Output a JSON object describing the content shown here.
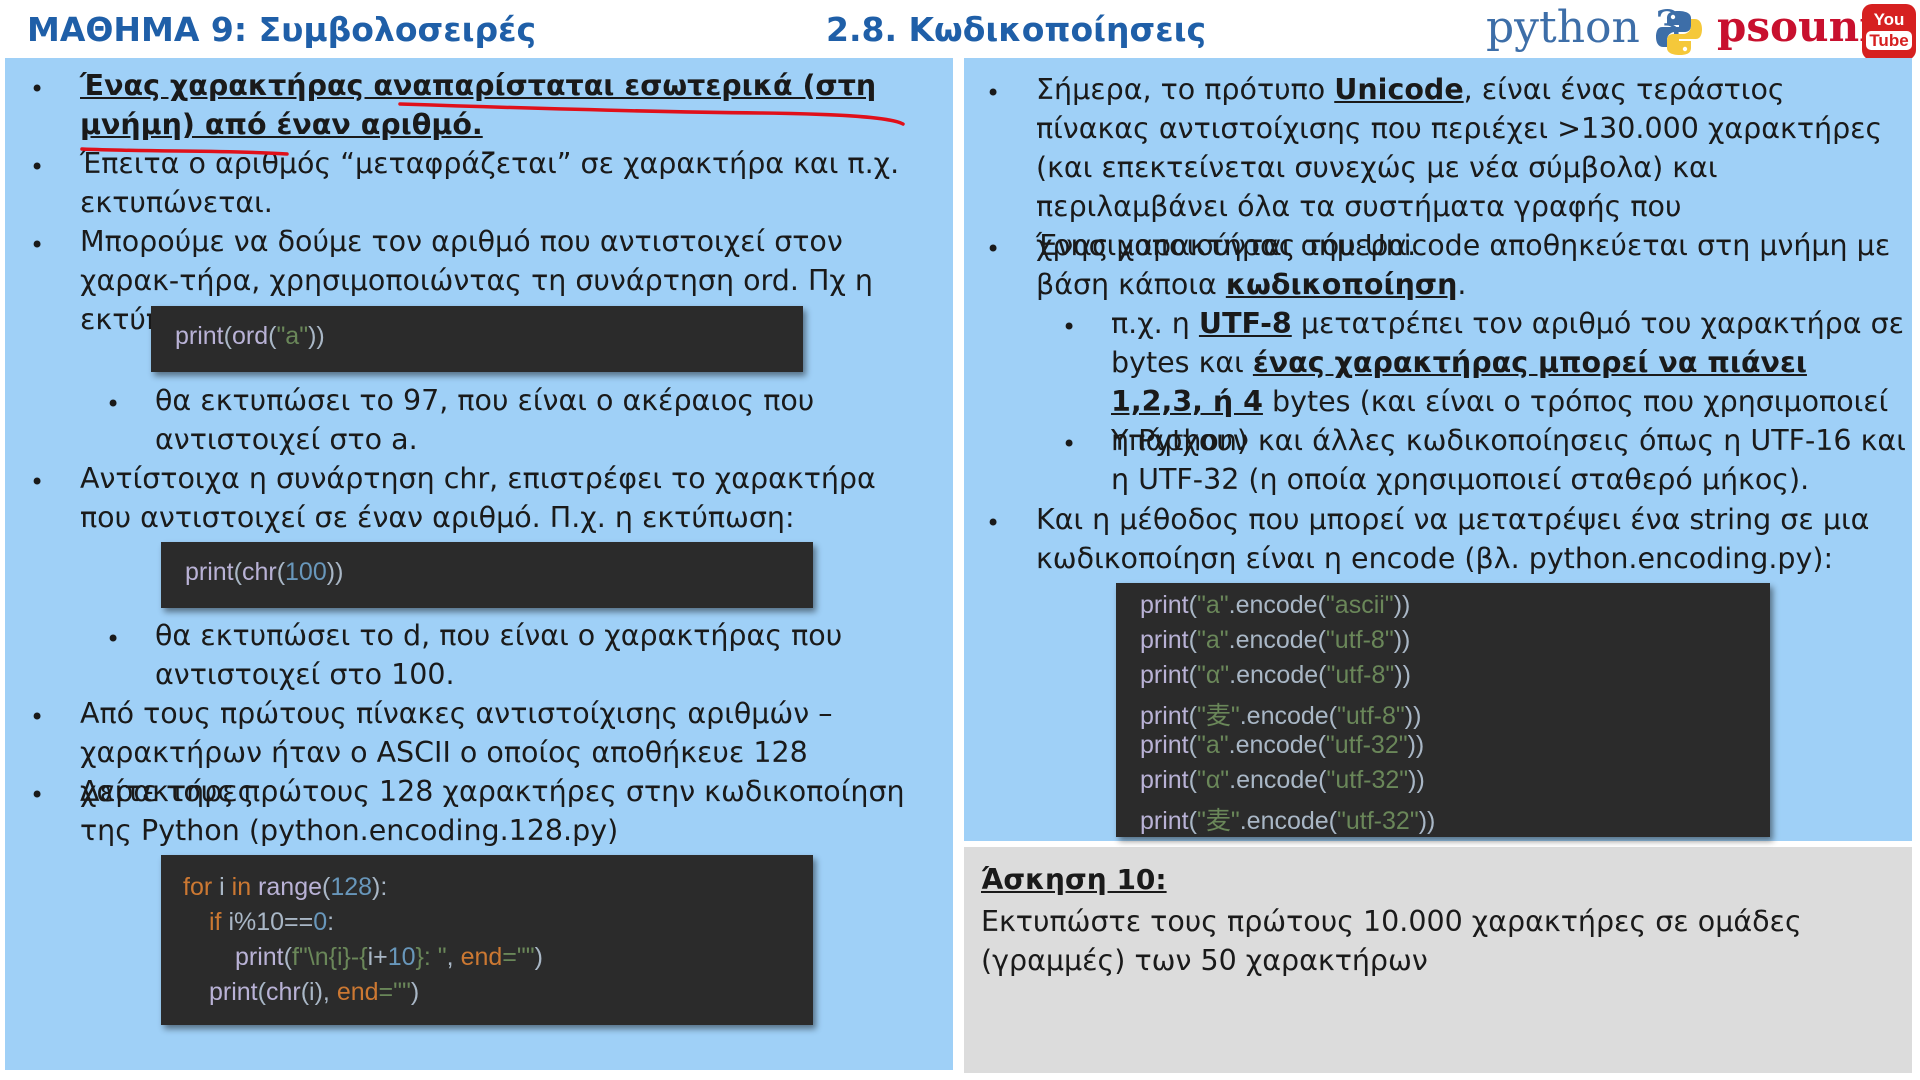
{
  "header": {
    "lesson_title": "ΜΑΘΗΜΑ 9: Συμβολοσειρές",
    "section_title": "2.8. Κωδικοποίησεις",
    "logo_python": "python 3",
    "logo_psounis": "psounis",
    "youtube_you": "You",
    "youtube_tube": "Tube"
  },
  "left": {
    "b1": "Ένας χαρακτήρας αναπαρίσταται εσωτερικά (στη μνήμη) από έναν αριθμό.",
    "b2": "Έπειτα ο αριθμός “μεταφράζεται” σε χαρακτήρα και π.χ. εκτυπώνεται.",
    "b3": "Μπορούμε να δούμε τον αριθμό που αντιστοιχεί  στον χαρακ-τήρα, χρησιμοποιώντας τη συνάρτηση ord. Πχ η εκτύπωση:",
    "code1": {
      "fn1": "print",
      "fn2": "ord",
      "arg": "\"a\""
    },
    "s1": "θα εκτυπώσει το 97, που είναι ο ακέραιος που αντιστοιχεί στο a.",
    "b4": "Αντίστοιχα η συνάρτηση chr, επιστρέφει το χαρακτήρα που αντιστοιχεί σε έναν αριθμό. Π.χ. η εκτύπωση:",
    "code2": {
      "fn1": "print",
      "fn2": "chr",
      "arg": "100"
    },
    "s2": "θα εκτυπώσει το d, που είναι ο χαρακτήρας που αντιστοιχεί στο 100.",
    "b5": "Από τους πρώτους πίνακες αντιστοίχισης αριθμών – χαρακτήρων ήταν ο ASCII ο οποίος αποθήκευε 128 χαρακτήρες",
    "b6": "Δείτε τους πρώτους 128 χαρακτήρες στην κωδικοποίηση της Python (python.encoding.128.py)",
    "code3": {
      "l1_kw1": "for",
      "l1_var": " i ",
      "l1_kw2": "in",
      "l1_fn": " range",
      "l1_num": "128",
      "l1_end": "):",
      "l2_kw": "if",
      "l2_rest": " i%10==",
      "l2_num": "0",
      "l2_end": ":",
      "l3_fn": "print",
      "l3_str1": "f\"\\n{i}-{",
      "l3_expr": "i+",
      "l3_num": "10",
      "l3_str2": "}: \"",
      "l3_kw": "end",
      "l3_str3": "=\"\"",
      "l4_fn": "print",
      "l4_fn2": "chr",
      "l4_mid": "(i), ",
      "l4_kw": "end",
      "l4_str": "=\"\""
    }
  },
  "right": {
    "b1_pre": "Σήμερα, το πρότυπο ",
    "b1_link": "Unicode",
    "b1_post": ", είναι ένας τεράστιος πίνακας αντιστοίχισης που περιέχει >130.000 χαρακτήρες (και επεκτείνεται συνεχώς με νέα σύμβολα) και περιλαμβάνει όλα τα συστήματα γραφής που χρησιμοποιούνται σήμερα.",
    "b2_pre": "Ένας χαρακτήρας του Unicode αποθηκεύεται στη μνήμη με βάση κάποια ",
    "b2_link": "κωδικοποίηση",
    "b2_post": ".",
    "s1_pre": "π.χ. η ",
    "s1_link": "UTF-8",
    "s1_mid": " μετατρέπει τον αριθμό του χαρακτήρα σε bytes και ",
    "s1_bold": "ένας χαρακτήρας μπορεί να πιάνει 1,2,3, ή 4",
    "s1_post": " bytes (και είναι ο τρόπος που χρησιμοποιεί η Python)",
    "s2": "Υπάρχουν και άλλες κωδικοποίησεις όπως η UTF-16 και η UTF-32 (η οποία χρησιμοποιεί σταθερό μήκος).",
    "b3": "Και η μέθοδος που μπορεί να μετατρέψει ένα string σε μια κωδικοποίηση είναι η encode (βλ. python.encoding.py):",
    "code_lines": [
      {
        "ch": "\"a\"",
        "enc": "\"ascii\""
      },
      {
        "ch": "\"a\"",
        "enc": "\"utf-8\""
      },
      {
        "ch": "\"α\"",
        "enc": "\"utf-8\""
      },
      {
        "ch": "\"麦\"",
        "enc": "\"utf-8\""
      },
      {
        "ch": "\"a\"",
        "enc": "\"utf-32\""
      },
      {
        "ch": "\"α\"",
        "enc": "\"utf-32\""
      },
      {
        "ch": "\"麦\"",
        "enc": "\"utf-32\""
      }
    ],
    "code_fn": "print",
    "code_method": ".encode("
  },
  "exercise": {
    "title": "Άσκηση 10:",
    "text": "Εκτυπώστε τους πρώτους 10.000 χαρακτήρες σε ομάδες (γραμμές) των 50 χαρακτήρων"
  },
  "bullet_char": "•",
  "colors": {
    "title_blue": "#1f5fa8",
    "panel_blue": "#9fd0f7",
    "panel_gray": "#dcdcdc",
    "code_bg": "#2b2b2b",
    "annotation_red": "#e0101a"
  }
}
